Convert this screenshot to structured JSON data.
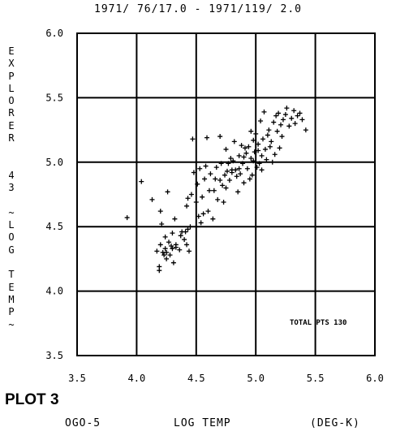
{
  "title": "1971/ 76/17.0 - 1971/119/ 2.0",
  "plot_label": "PLOT 3",
  "x_axis": {
    "source": "OGO-5",
    "quantity": "LOG TEMP",
    "unit": "(DEG-K)"
  },
  "annotation": "TOTAL PTS  130",
  "chart_data": {
    "type": "scatter",
    "title": "1971/ 76/17.0 - 1971/119/ 2.0",
    "xlabel": "OGO-5    LOG TEMP    (DEG-K)",
    "ylabel": "EXPLORER 43 ~LOG TEMP~",
    "xlim": [
      3.5,
      6.0
    ],
    "ylim": [
      3.5,
      6.0
    ],
    "x_ticks": [
      "3.5",
      "4.0",
      "4.5",
      "5.0",
      "5.5",
      "6.0"
    ],
    "y_ticks": [
      "3.5",
      "4.0",
      "4.5",
      "5.0",
      "5.5",
      "6.0"
    ],
    "grid": true,
    "marker": "+",
    "annotations": [
      "TOTAL PTS  130"
    ],
    "points": [
      [
        3.92,
        4.57
      ],
      [
        4.04,
        4.85
      ],
      [
        4.13,
        4.71
      ],
      [
        4.17,
        4.31
      ],
      [
        4.19,
        4.19
      ],
      [
        4.19,
        4.16
      ],
      [
        4.2,
        4.36
      ],
      [
        4.2,
        4.62
      ],
      [
        4.21,
        4.52
      ],
      [
        4.22,
        4.3
      ],
      [
        4.23,
        4.28
      ],
      [
        4.24,
        4.42
      ],
      [
        4.24,
        4.33
      ],
      [
        4.25,
        4.3
      ],
      [
        4.25,
        4.25
      ],
      [
        4.26,
        4.77
      ],
      [
        4.27,
        4.38
      ],
      [
        4.28,
        4.28
      ],
      [
        4.29,
        4.35
      ],
      [
        4.3,
        4.45
      ],
      [
        4.3,
        4.33
      ],
      [
        4.31,
        4.22
      ],
      [
        4.32,
        4.56
      ],
      [
        4.33,
        4.36
      ],
      [
        4.33,
        4.34
      ],
      [
        4.36,
        4.32
      ],
      [
        4.37,
        4.43
      ],
      [
        4.38,
        4.46
      ],
      [
        4.4,
        4.4
      ],
      [
        4.41,
        4.46
      ],
      [
        4.42,
        4.36
      ],
      [
        4.42,
        4.66
      ],
      [
        4.43,
        4.48
      ],
      [
        4.43,
        4.72
      ],
      [
        4.44,
        4.31
      ],
      [
        4.45,
        4.5
      ],
      [
        4.46,
        4.75
      ],
      [
        4.47,
        5.18
      ],
      [
        4.48,
        4.92
      ],
      [
        4.5,
        4.69
      ],
      [
        4.51,
        4.83
      ],
      [
        4.52,
        4.58
      ],
      [
        4.53,
        4.95
      ],
      [
        4.54,
        4.53
      ],
      [
        4.55,
        4.73
      ],
      [
        4.56,
        4.6
      ],
      [
        4.57,
        4.87
      ],
      [
        4.58,
        4.97
      ],
      [
        4.59,
        5.19
      ],
      [
        4.6,
        4.62
      ],
      [
        4.61,
        4.78
      ],
      [
        4.62,
        4.91
      ],
      [
        4.64,
        4.56
      ],
      [
        4.65,
        4.78
      ],
      [
        4.66,
        4.87
      ],
      [
        4.67,
        4.96
      ],
      [
        4.68,
        4.71
      ],
      [
        4.7,
        5.2
      ],
      [
        4.7,
        4.86
      ],
      [
        4.71,
        4.99
      ],
      [
        4.72,
        4.82
      ],
      [
        4.73,
        4.69
      ],
      [
        4.74,
        4.9
      ],
      [
        4.75,
        5.1
      ],
      [
        4.75,
        4.8
      ],
      [
        4.76,
        4.93
      ],
      [
        4.77,
        4.99
      ],
      [
        4.78,
        4.86
      ],
      [
        4.79,
        5.03
      ],
      [
        4.8,
        4.92
      ],
      [
        4.8,
        4.94
      ],
      [
        4.81,
        5.01
      ],
      [
        4.82,
        5.16
      ],
      [
        4.83,
        4.94
      ],
      [
        4.84,
        4.89
      ],
      [
        4.85,
        4.77
      ],
      [
        4.86,
        4.95
      ],
      [
        4.86,
        5.05
      ],
      [
        4.87,
        4.91
      ],
      [
        4.88,
        5.13
      ],
      [
        4.89,
        4.99
      ],
      [
        4.9,
        4.84
      ],
      [
        4.9,
        5.04
      ],
      [
        4.91,
        5.11
      ],
      [
        4.92,
        5.07
      ],
      [
        4.93,
        4.95
      ],
      [
        4.94,
        5.12
      ],
      [
        4.95,
        4.87
      ],
      [
        4.96,
        5.24
      ],
      [
        4.96,
        5.03
      ],
      [
        4.97,
        4.9
      ],
      [
        4.98,
        5.17
      ],
      [
        4.98,
        5.01
      ],
      [
        4.99,
        5.08
      ],
      [
        5.0,
        5.22
      ],
      [
        5.01,
        4.96
      ],
      [
        5.02,
        5.09
      ],
      [
        5.02,
        5.14
      ],
      [
        5.03,
        4.99
      ],
      [
        5.04,
        5.32
      ],
      [
        5.05,
        5.05
      ],
      [
        5.05,
        4.94
      ],
      [
        5.06,
        5.18
      ],
      [
        5.07,
        5.39
      ],
      [
        5.08,
        5.1
      ],
      [
        5.09,
        5.02
      ],
      [
        5.1,
        5.21
      ],
      [
        5.11,
        5.25
      ],
      [
        5.12,
        5.12
      ],
      [
        5.13,
        5.16
      ],
      [
        5.14,
        5.0
      ],
      [
        5.15,
        5.31
      ],
      [
        5.16,
        5.06
      ],
      [
        5.17,
        5.36
      ],
      [
        5.18,
        5.24
      ],
      [
        5.19,
        5.38
      ],
      [
        5.2,
        5.11
      ],
      [
        5.21,
        5.29
      ],
      [
        5.22,
        5.2
      ],
      [
        5.23,
        5.33
      ],
      [
        5.25,
        5.37
      ],
      [
        5.26,
        5.42
      ],
      [
        5.28,
        5.28
      ],
      [
        5.3,
        5.34
      ],
      [
        5.32,
        5.4
      ],
      [
        5.33,
        5.3
      ],
      [
        5.35,
        5.36
      ],
      [
        5.37,
        5.38
      ],
      [
        5.39,
        5.33
      ],
      [
        5.42,
        5.25
      ]
    ]
  }
}
